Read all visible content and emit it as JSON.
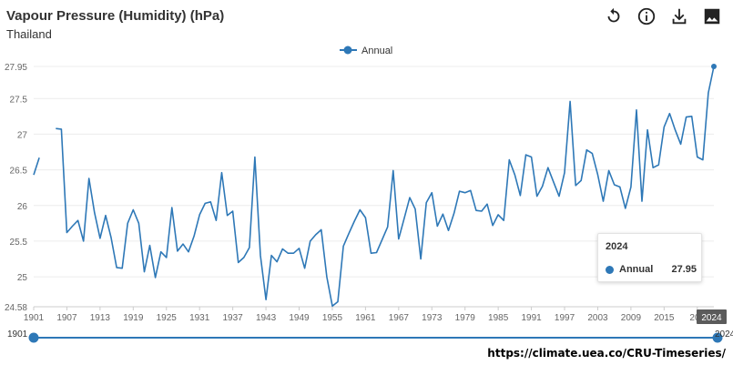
{
  "header": {
    "title": "Vapour Pressure (Humidity) (hPa)",
    "subtitle": "Thailand"
  },
  "toolbar": {
    "reset_icon": "reset-icon",
    "info_icon": "info-icon",
    "download_icon": "download-icon",
    "image_icon": "image-icon"
  },
  "colors": {
    "series": "#2e78b7",
    "grid": "#ececec",
    "text": "#666666"
  },
  "tooltip": {
    "date": "2024",
    "series": "Annual",
    "value": "27.95"
  },
  "slider": {
    "start": "1901",
    "end": "2024"
  },
  "source": "https://climate.uea.co/CRU-Timeseries/",
  "chart_data": {
    "type": "line",
    "title": "Vapour Pressure (Humidity) (hPa)",
    "subtitle": "Thailand",
    "legend": {
      "position": "top-center",
      "entries": [
        "Annual"
      ]
    },
    "x_ticks": [
      "1901",
      "1907",
      "1913",
      "1919",
      "1925",
      "1931",
      "1937",
      "1943",
      "1949",
      "1955",
      "1961",
      "1967",
      "1973",
      "1979",
      "1985",
      "1991",
      "1997",
      "2003",
      "2009",
      "2015",
      "202"
    ],
    "y_ticks": [
      "24.58",
      "25",
      "25.5",
      "26",
      "26.5",
      "27",
      "27.5",
      "27.95"
    ],
    "ylim": [
      24.58,
      27.95
    ],
    "xlim": [
      1901,
      2024
    ],
    "hover_x_label": "2024",
    "series": [
      {
        "name": "Annual",
        "x": [
          1901,
          1902,
          1903,
          1904,
          1905,
          1906,
          1907,
          1908,
          1909,
          1910,
          1911,
          1912,
          1913,
          1914,
          1915,
          1916,
          1917,
          1918,
          1919,
          1920,
          1921,
          1922,
          1923,
          1924,
          1925,
          1926,
          1927,
          1928,
          1929,
          1930,
          1931,
          1932,
          1933,
          1934,
          1935,
          1936,
          1937,
          1938,
          1939,
          1940,
          1941,
          1942,
          1943,
          1944,
          1945,
          1946,
          1947,
          1948,
          1949,
          1950,
          1951,
          1952,
          1953,
          1954,
          1955,
          1956,
          1957,
          1958,
          1959,
          1960,
          1961,
          1962,
          1963,
          1964,
          1965,
          1966,
          1967,
          1968,
          1969,
          1970,
          1971,
          1972,
          1973,
          1974,
          1975,
          1976,
          1977,
          1978,
          1979,
          1980,
          1981,
          1982,
          1983,
          1984,
          1985,
          1986,
          1987,
          1988,
          1989,
          1990,
          1991,
          1992,
          1993,
          1994,
          1995,
          1996,
          1997,
          1998,
          1999,
          2000,
          2001,
          2002,
          2003,
          2004,
          2005,
          2006,
          2007,
          2008,
          2009,
          2010,
          2011,
          2012,
          2013,
          2014,
          2015,
          2016,
          2017,
          2018,
          2019,
          2020,
          2021,
          2022,
          2023,
          2024
        ],
        "values": [
          26.43,
          26.67,
          null,
          null,
          27.08,
          27.07,
          25.62,
          25.71,
          25.79,
          25.5,
          26.38,
          25.9,
          25.54,
          25.86,
          25.55,
          25.13,
          25.12,
          25.75,
          25.94,
          25.75,
          25.07,
          25.44,
          24.99,
          25.35,
          25.27,
          25.97,
          25.36,
          25.46,
          25.35,
          25.57,
          25.87,
          26.03,
          26.05,
          25.79,
          26.46,
          25.86,
          25.92,
          25.2,
          25.27,
          25.41,
          26.68,
          25.3,
          24.68,
          25.3,
          25.21,
          25.39,
          25.33,
          25.33,
          25.4,
          25.12,
          25.5,
          25.59,
          25.66,
          25.0,
          24.59,
          24.65,
          25.43,
          25.61,
          25.78,
          25.94,
          25.83,
          25.33,
          25.34,
          25.52,
          25.7,
          26.49,
          25.53,
          25.82,
          26.11,
          25.95,
          25.25,
          26.04,
          26.18,
          25.71,
          25.88,
          25.65,
          25.89,
          26.2,
          26.18,
          26.21,
          25.93,
          25.92,
          26.02,
          25.72,
          25.87,
          25.79,
          26.64,
          26.43,
          26.14,
          26.71,
          26.68,
          26.13,
          26.27,
          26.53,
          26.33,
          26.13,
          26.46,
          27.46,
          26.28,
          26.35,
          26.78,
          26.73,
          26.43,
          26.06,
          26.49,
          26.29,
          26.26,
          25.96,
          26.26,
          27.34,
          26.06,
          27.06,
          26.53,
          26.57,
          27.1,
          27.29,
          27.06,
          26.86,
          27.24,
          27.25,
          26.68,
          26.64,
          27.58,
          27.95
        ]
      }
    ]
  }
}
